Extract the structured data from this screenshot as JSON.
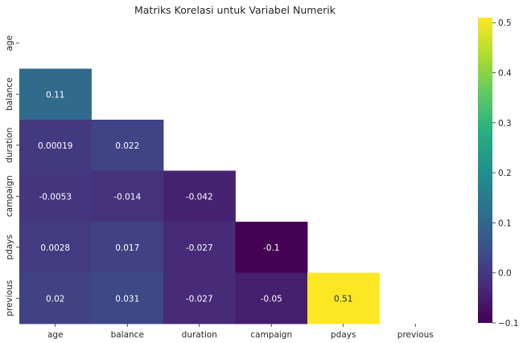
{
  "chart_data": {
    "type": "heatmap",
    "title": "Matriks Korelasi untuk Variabel Numerik",
    "variables": [
      "age",
      "balance",
      "duration",
      "campaign",
      "pdays",
      "previous"
    ],
    "mask": "upper-triangle-including-diagonal",
    "colormap": "viridis",
    "cells": [
      {
        "row": "balance",
        "col": "age",
        "value": 0.11,
        "label": "0.11"
      },
      {
        "row": "duration",
        "col": "age",
        "value": 0.00019,
        "label": "0.00019"
      },
      {
        "row": "duration",
        "col": "balance",
        "value": 0.022,
        "label": "0.022"
      },
      {
        "row": "campaign",
        "col": "age",
        "value": -0.0053,
        "label": "-0.0053"
      },
      {
        "row": "campaign",
        "col": "balance",
        "value": -0.014,
        "label": "-0.014"
      },
      {
        "row": "campaign",
        "col": "duration",
        "value": -0.042,
        "label": "-0.042"
      },
      {
        "row": "pdays",
        "col": "age",
        "value": 0.0028,
        "label": "0.0028"
      },
      {
        "row": "pdays",
        "col": "balance",
        "value": 0.017,
        "label": "0.017"
      },
      {
        "row": "pdays",
        "col": "duration",
        "value": -0.027,
        "label": "-0.027"
      },
      {
        "row": "pdays",
        "col": "campaign",
        "value": -0.1,
        "label": "-0.1"
      },
      {
        "row": "previous",
        "col": "age",
        "value": 0.02,
        "label": "0.02"
      },
      {
        "row": "previous",
        "col": "balance",
        "value": 0.031,
        "label": "0.031"
      },
      {
        "row": "previous",
        "col": "duration",
        "value": -0.027,
        "label": "-0.027"
      },
      {
        "row": "previous",
        "col": "campaign",
        "value": -0.05,
        "label": "-0.05"
      },
      {
        "row": "previous",
        "col": "pdays",
        "value": 0.51,
        "label": "0.51"
      }
    ],
    "colorbar": {
      "min": -0.1,
      "max": 0.51,
      "ticks": [
        -0.1,
        0.0,
        0.1,
        0.2,
        0.3,
        0.4,
        0.5
      ],
      "tick_labels": [
        "−0.1",
        "0.0",
        "0.1",
        "0.2",
        "0.3",
        "0.4",
        "0.5"
      ]
    }
  }
}
